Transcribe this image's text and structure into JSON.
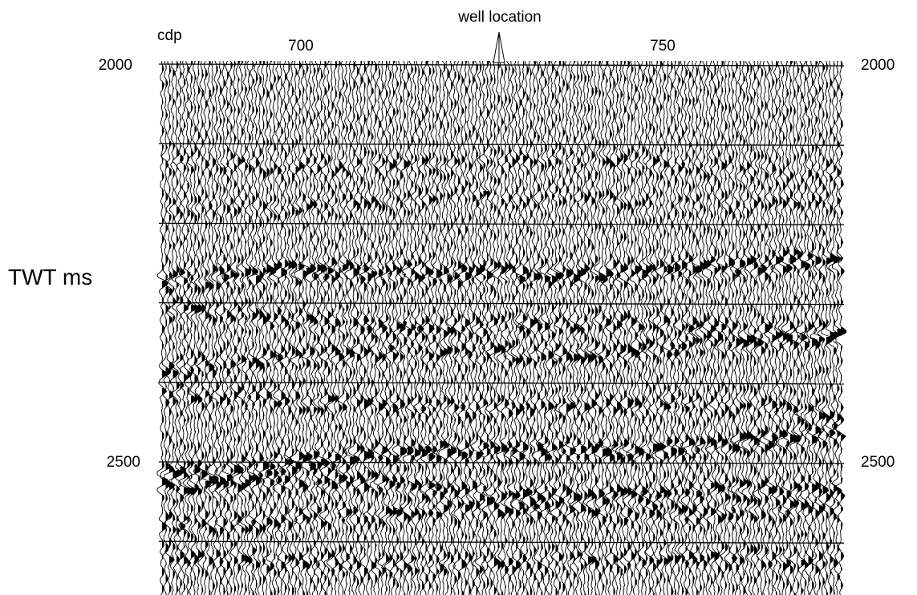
{
  "figure": {
    "annotation": "well location",
    "x_label": "cdp",
    "x_tick_labels": [
      "700",
      "750"
    ],
    "y_label": "TWT ms",
    "y_tick_labels_left": [
      "2000",
      "2500"
    ],
    "y_tick_labels_right": [
      "2000",
      "2500"
    ]
  }
}
